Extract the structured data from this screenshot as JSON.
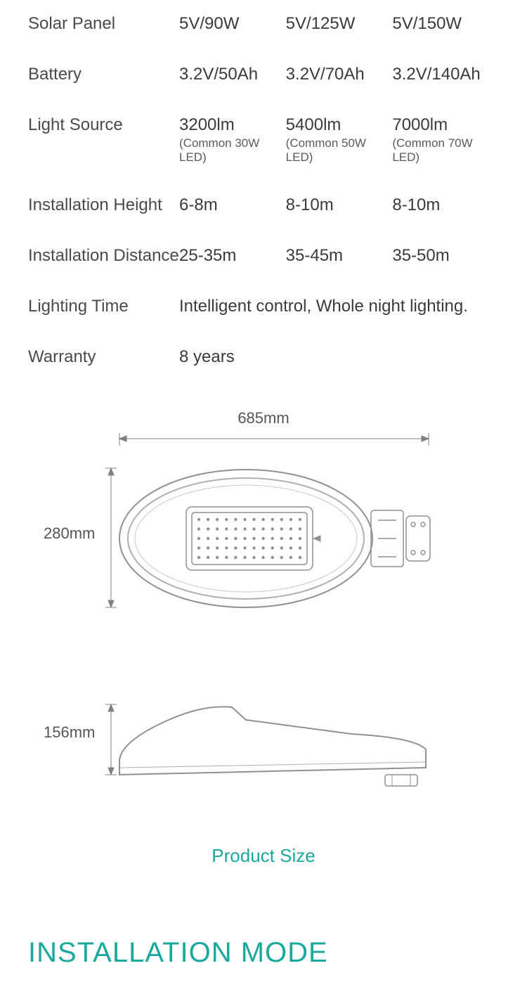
{
  "text_color": "#4a4a4a",
  "accent_color": "#1aa99c",
  "stroke_color": "#808080",
  "stroke_light": "#b0b0b0",
  "background": "#ffffff",
  "specs": {
    "rows": [
      {
        "label": "Solar Panel",
        "v1": "5V/90W",
        "v2": "5V/125W",
        "v3": "5V/150W"
      },
      {
        "label": "Battery",
        "v1": "3.2V/50Ah",
        "v2": "3.2V/70Ah",
        "v3": "3.2V/140Ah"
      },
      {
        "label": "Light Source",
        "v1": "3200lm",
        "s1": "(Common 30W LED)",
        "v2": "5400lm",
        "s2": "(Common 50W LED)",
        "v3": "7000lm",
        "s3": "(Common 70W LED)"
      },
      {
        "label": "Installation Height",
        "v1": "6-8m",
        "v2": "8-10m",
        "v3": "8-10m"
      },
      {
        "label": "Installation Distance",
        "v1": "25-35m",
        "v2": "35-45m",
        "v3": "35-50m"
      }
    ],
    "lighting_time_label": "Lighting Time",
    "lighting_time_value": "Intelligent control, Whole night lighting.",
    "warranty_label": "Warranty",
    "warranty_value": "8 years"
  },
  "dimensions": {
    "width_label": "685mm",
    "height_label": "280mm",
    "depth_label": "156mm"
  },
  "titles": {
    "product_size": "Product Size",
    "installation_mode": "INSTALLATION MODE"
  },
  "diagram": {
    "led_rows": 5,
    "led_cols": 12,
    "led_dot_radius": 2.2
  }
}
